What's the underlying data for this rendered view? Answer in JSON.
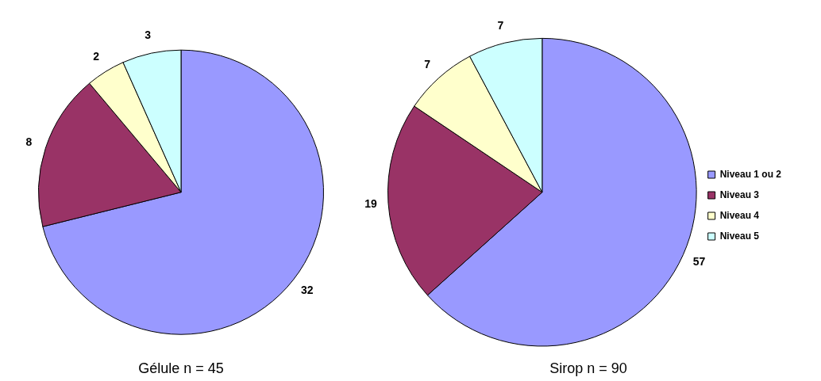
{
  "chart_data": [
    {
      "type": "pie",
      "title": "Gélule n = 45",
      "categories": [
        null,
        null,
        null,
        null
      ],
      "values": [
        32,
        8,
        2,
        3
      ],
      "colors": [
        "#9999ff",
        "#993366",
        "#ffffcc",
        "#ccffff"
      ],
      "data_labels": true,
      "legend": false
    },
    {
      "type": "pie",
      "title": "Sirop n = 90",
      "categories": [
        "Niveau 1 ou 2",
        "Niveau 3",
        "Niveau 4",
        "Niveau 5"
      ],
      "values": [
        57,
        19,
        7,
        7
      ],
      "colors": [
        "#9999ff",
        "#993366",
        "#ffffcc",
        "#ccffff"
      ],
      "data_labels": true,
      "legend": "right"
    }
  ]
}
